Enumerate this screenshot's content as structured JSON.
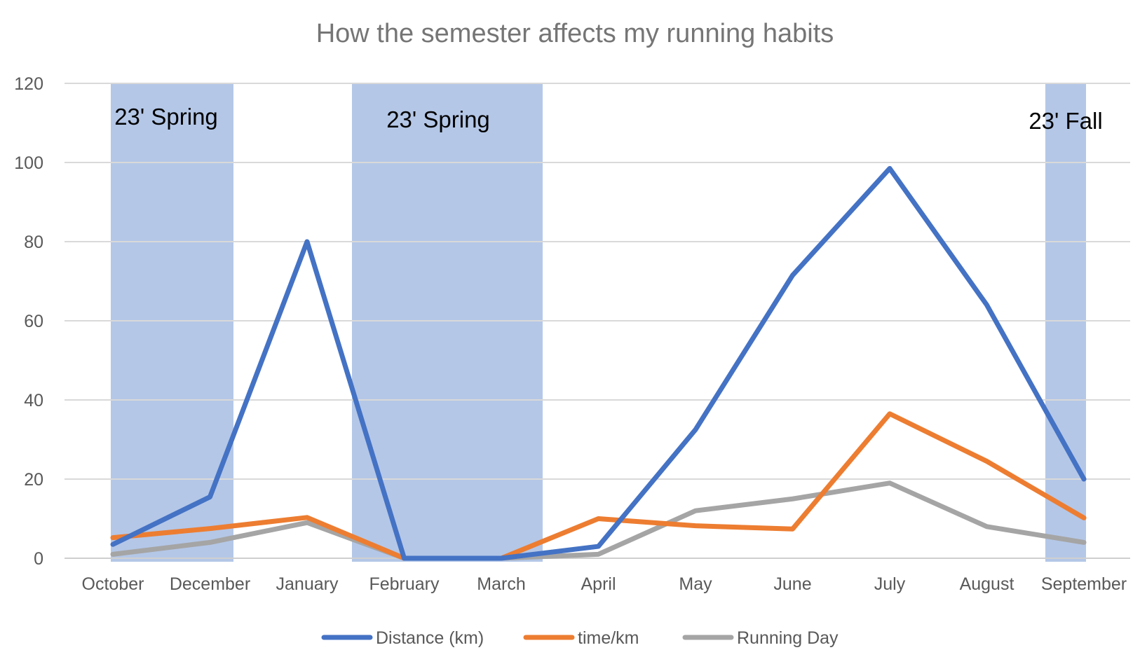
{
  "chart_data": {
    "type": "line",
    "title": "How the semester affects my running habits",
    "xlabel": "",
    "ylabel": "",
    "ylim": [
      0,
      120
    ],
    "yticks": [
      0,
      20,
      40,
      60,
      80,
      100,
      120
    ],
    "grid": true,
    "legend_position": "bottom",
    "categories": [
      "October",
      "December",
      "January",
      "February",
      "March",
      "April",
      "May",
      "June",
      "July",
      "August",
      "September"
    ],
    "series": [
      {
        "name": "Distance (km)",
        "color": "#4472C4",
        "values": [
          3.5,
          15.5,
          80,
          0,
          0,
          3,
          32.5,
          71.5,
          98.5,
          64,
          20
        ]
      },
      {
        "name": "time/km",
        "color": "#ED7D31",
        "values": [
          5.2,
          7.5,
          10.3,
          0,
          0,
          10,
          8.2,
          7.4,
          36.5,
          24.5,
          10.2
        ]
      },
      {
        "name": "Running Day",
        "color": "#A5A5A5",
        "values": [
          1,
          4,
          9,
          0,
          0,
          1,
          12,
          15,
          19,
          8,
          4
        ]
      }
    ],
    "bands": [
      {
        "label": "23' Spring",
        "start": "October",
        "end": "December",
        "color": "#B4C7E7"
      },
      {
        "label": "23' Spring",
        "start": "February",
        "end": "March",
        "color": "#B4C7E7"
      },
      {
        "label": "23' Fall",
        "start": "September",
        "end": "September",
        "color": "#B4C7E7"
      }
    ]
  }
}
